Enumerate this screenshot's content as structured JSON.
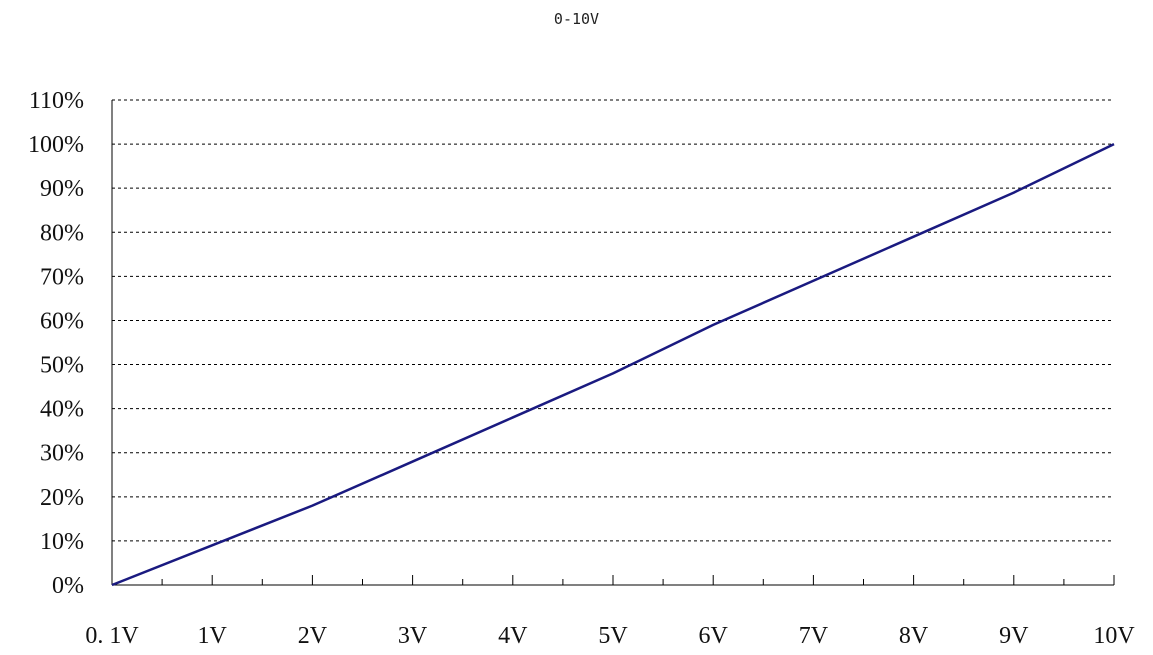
{
  "chart_data": {
    "type": "line",
    "title": "0-10V",
    "xlabel": "",
    "ylabel": "",
    "x_tick_labels": [
      "0. 1V",
      "1V",
      "2V",
      "3V",
      "4V",
      "5V",
      "6V",
      "7V",
      "8V",
      "9V",
      "10V"
    ],
    "y_tick_labels": [
      "0%",
      "10%",
      "20%",
      "30%",
      "40%",
      "50%",
      "60%",
      "70%",
      "80%",
      "90%",
      "100%",
      "110%"
    ],
    "ylim": [
      0,
      110
    ],
    "grid": true,
    "series": [
      {
        "color": "#1a1a80",
        "x": [
          "0. 1V",
          "1V",
          "2V",
          "3V",
          "4V",
          "5V",
          "6V",
          "7V",
          "8V",
          "9V",
          "10V"
        ],
        "values": [
          0,
          9,
          18,
          28,
          38,
          48,
          59,
          69,
          79,
          89,
          100
        ]
      }
    ]
  }
}
